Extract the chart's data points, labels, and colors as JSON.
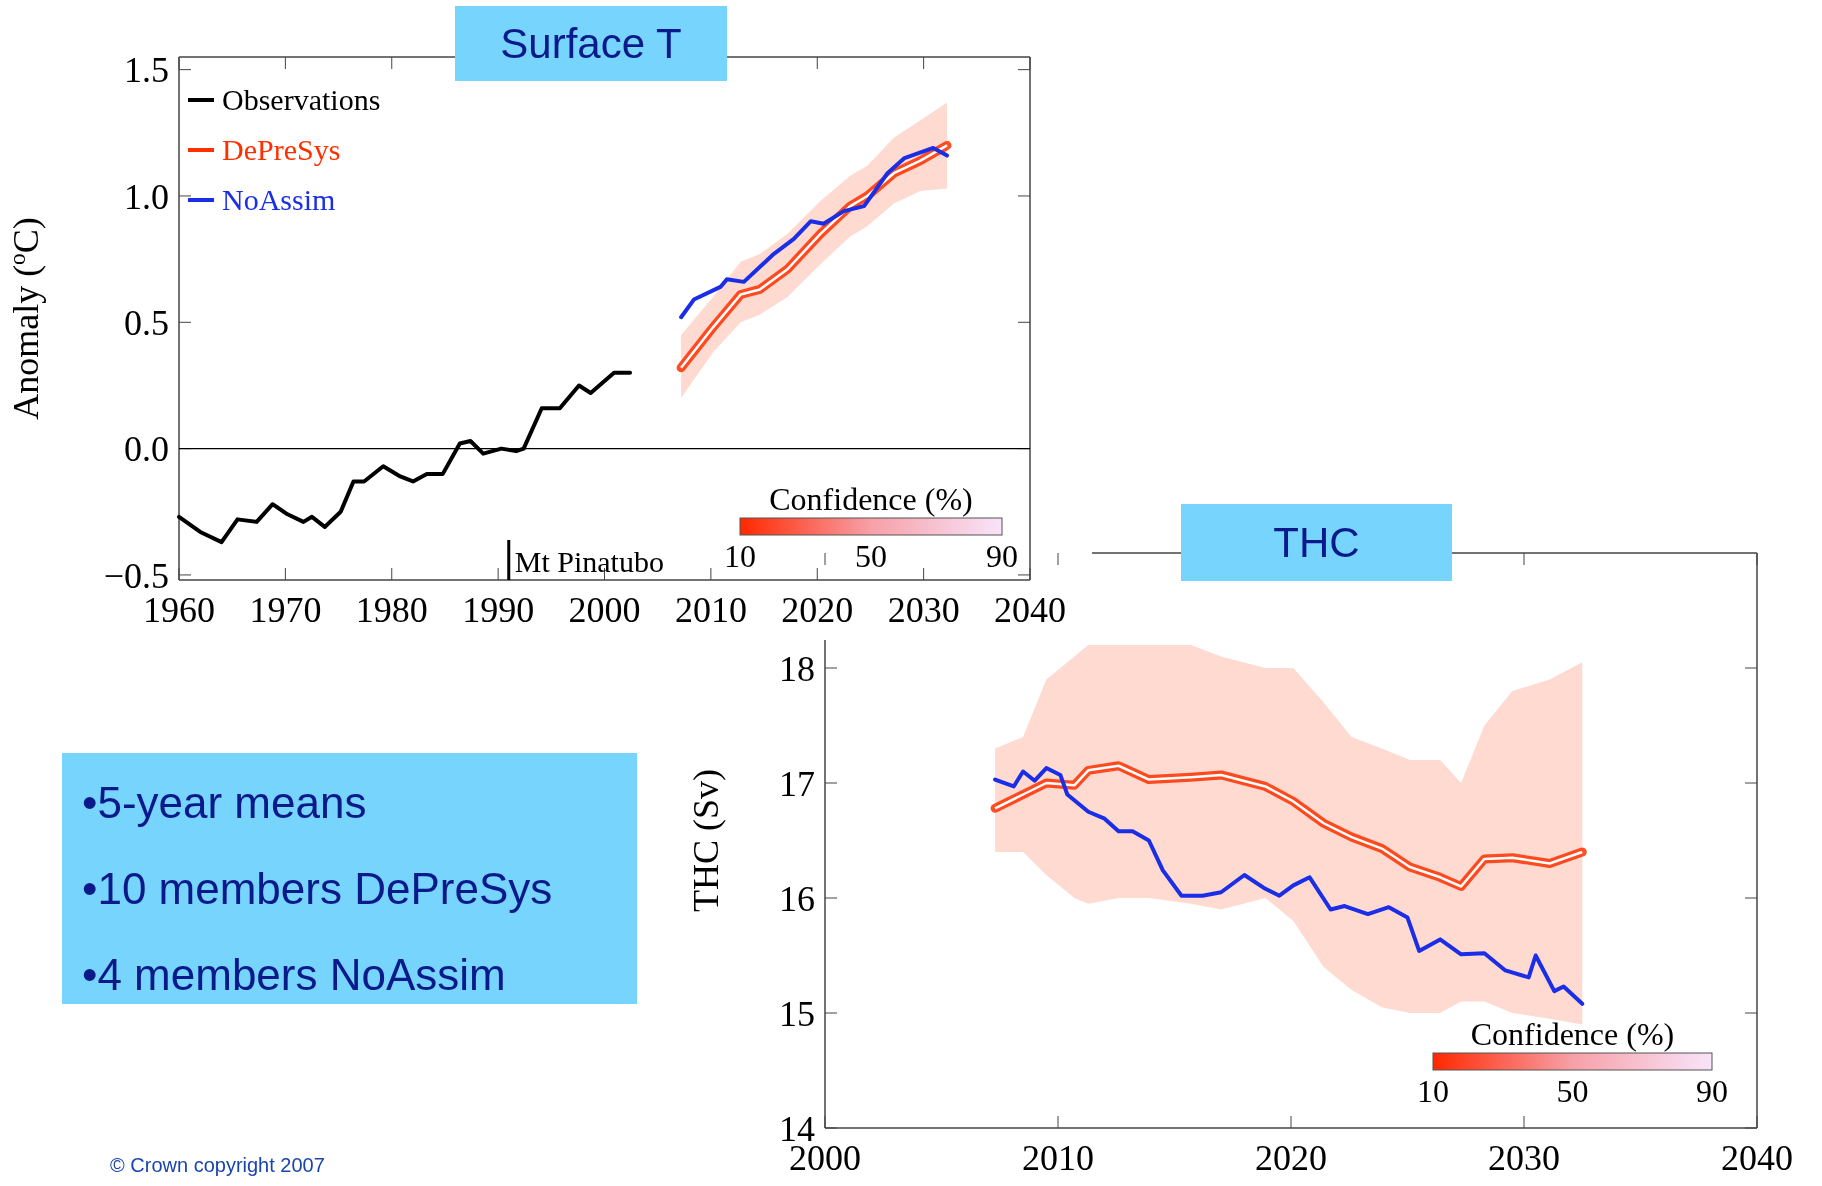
{
  "chart_data": [
    {
      "type": "line",
      "title": "Surface T",
      "ylabel": "Anomaly ($^{o}$C)",
      "xlim": [
        1960,
        2040
      ],
      "xticks": [
        1960,
        1970,
        1980,
        1990,
        2000,
        2010,
        2020,
        2030,
        2040
      ],
      "ylim": [
        -0.52,
        1.55
      ],
      "yticks": [
        {
          "value": -0.5,
          "label": "−0.5"
        },
        {
          "value": 0,
          "label": "0.0"
        },
        0.5,
        {
          "value": 1,
          "label": "1.0"
        },
        1.5
      ],
      "legend": "top left",
      "clabel": "Confidence (%)",
      "annotations": [
        "10",
        "50",
        "90"
      ],
      "ref_lines": [
        {
          "axis": "y",
          "value": 0,
          "color": "#000000"
        },
        {
          "axis": "x",
          "value": 1991,
          "label": "Mt Pinatubo",
          "color": "#000000"
        }
      ],
      "series": [
        {
          "name": "Observations",
          "color": "#000000",
          "x": [
            1960,
            1962,
            1964,
            1965.5,
            1967.3,
            1968.8,
            1970.2,
            1971.7,
            1972.5,
            1973.7,
            1975.2,
            1976.4,
            1977.4,
            1979.2,
            1980.8,
            1982,
            1983.3,
            1984.8,
            1986.4,
            1987.4,
            1988.6,
            1990.3,
            1991.7,
            1992.4,
            1994.1,
            1995.8,
            1997.6,
            1998.7,
            2000.9,
            2002.4
          ],
          "values": [
            -0.27,
            -0.33,
            -0.37,
            -0.28,
            -0.29,
            -0.22,
            -0.26,
            -0.29,
            -0.27,
            -0.31,
            -0.25,
            -0.13,
            -0.13,
            -0.07,
            -0.11,
            -0.13,
            -0.1,
            -0.1,
            0.02,
            0.03,
            -0.02,
            0,
            -0.01,
            0,
            0.16,
            0.16,
            0.25,
            0.22,
            0.3,
            0.3
          ]
        },
        {
          "name": "DePreSys",
          "color": "#ff3000",
          "x": [
            2007.2,
            2010.2,
            2012.8,
            2014.6,
            2017.2,
            2020.3,
            2023.1,
            2024.7,
            2027.2,
            2029.7,
            2032.2
          ],
          "values": [
            0.32,
            0.48,
            0.61,
            0.63,
            0.71,
            0.85,
            0.96,
            1.0,
            1.09,
            1.14,
            1.2
          ],
          "lower": [
            0.2,
            0.38,
            0.5,
            0.53,
            0.6,
            0.73,
            0.84,
            0.88,
            0.97,
            1.02,
            1.03
          ],
          "upper": [
            0.45,
            0.6,
            0.74,
            0.77,
            0.85,
            0.98,
            1.08,
            1.12,
            1.23,
            1.3,
            1.37
          ]
        },
        {
          "name": "NoAssim",
          "color": "#1a2ee8",
          "x": [
            2007.2,
            2008.4,
            2010.9,
            2011.5,
            2013.1,
            2015.9,
            2017.8,
            2019.4,
            2020.6,
            2022.5,
            2024.4,
            2026.6,
            2028.2,
            2030.9,
            2032.2
          ],
          "values": [
            0.52,
            0.59,
            0.64,
            0.67,
            0.66,
            0.77,
            0.83,
            0.9,
            0.89,
            0.94,
            0.96,
            1.09,
            1.15,
            1.19,
            1.16
          ]
        }
      ]
    },
    {
      "type": "line",
      "title": "THC",
      "ylabel": "THC (Sv)",
      "xlim": [
        2000,
        2040
      ],
      "xticks": [
        2000,
        2010,
        2020,
        2030,
        2040
      ],
      "ylim": [
        14,
        19
      ],
      "yticks": [
        14,
        15,
        16,
        17,
        18
      ],
      "clabel": "Confidence (%)",
      "annotations": [
        "10",
        "50",
        "90",
        "© Crown copyright 2007"
      ],
      "series": [
        {
          "color": "#ff3000",
          "x": [
            2007.3,
            2008.5,
            2009.5,
            2010.7,
            2011.3,
            2012.6,
            2013.9,
            2015.7,
            2017,
            2018.9,
            2020.1,
            2021.4,
            2022.6,
            2023.9,
            2025.1,
            2026.4,
            2027.3,
            2028.3,
            2029.5,
            2031.1,
            2032.5
          ],
          "values": [
            16.78,
            16.9,
            17.0,
            16.98,
            17.11,
            17.15,
            17.03,
            17.05,
            17.07,
            16.97,
            16.84,
            16.65,
            16.53,
            16.43,
            16.27,
            16.18,
            16.1,
            16.34,
            16.35,
            16.3,
            16.4
          ],
          "lower": [
            16.4,
            16.4,
            16.2,
            16.0,
            15.95,
            16.0,
            16.0,
            15.95,
            15.9,
            16.0,
            15.8,
            15.4,
            15.2,
            15.05,
            15.0,
            15.0,
            15.1,
            15.1,
            15.0,
            14.95,
            14.9
          ],
          "upper": [
            17.3,
            17.4,
            17.9,
            18.1,
            18.2,
            18.2,
            18.2,
            18.2,
            18.1,
            18.0,
            18.0,
            17.7,
            17.4,
            17.3,
            17.2,
            17.2,
            17.0,
            17.5,
            17.8,
            17.9,
            18.05
          ]
        },
        {
          "color": "#1a2ee8",
          "x": [
            2007.3,
            2008.1,
            2008.5,
            2009,
            2009.5,
            2010.1,
            2010.4,
            2011.3,
            2012,
            2012.6,
            2013.2,
            2013.9,
            2014.5,
            2015.3,
            2016.2,
            2017,
            2018,
            2018.9,
            2019.5,
            2020.1,
            2020.8,
            2021.7,
            2022.3,
            2023.3,
            2024.2,
            2025,
            2025.5,
            2026.4,
            2027.3,
            2028.3,
            2029.2,
            2030.2,
            2030.5,
            2031.3,
            2031.7,
            2032.5
          ],
          "values": [
            17.03,
            16.97,
            17.1,
            17.02,
            17.13,
            17.07,
            16.9,
            16.75,
            16.69,
            16.58,
            16.58,
            16.5,
            16.24,
            16.02,
            16.02,
            16.05,
            16.2,
            16.08,
            16.02,
            16.11,
            16.18,
            15.9,
            15.93,
            15.86,
            15.92,
            15.83,
            15.54,
            15.64,
            15.51,
            15.52,
            15.37,
            15.31,
            15.5,
            15.19,
            15.23,
            15.08
          ]
        }
      ]
    },
    {
      "type": "other",
      "annotations": [
        "•5-year means",
        "•10 members DePreSys",
        "•4 members NoAssim"
      ]
    }
  ]
}
